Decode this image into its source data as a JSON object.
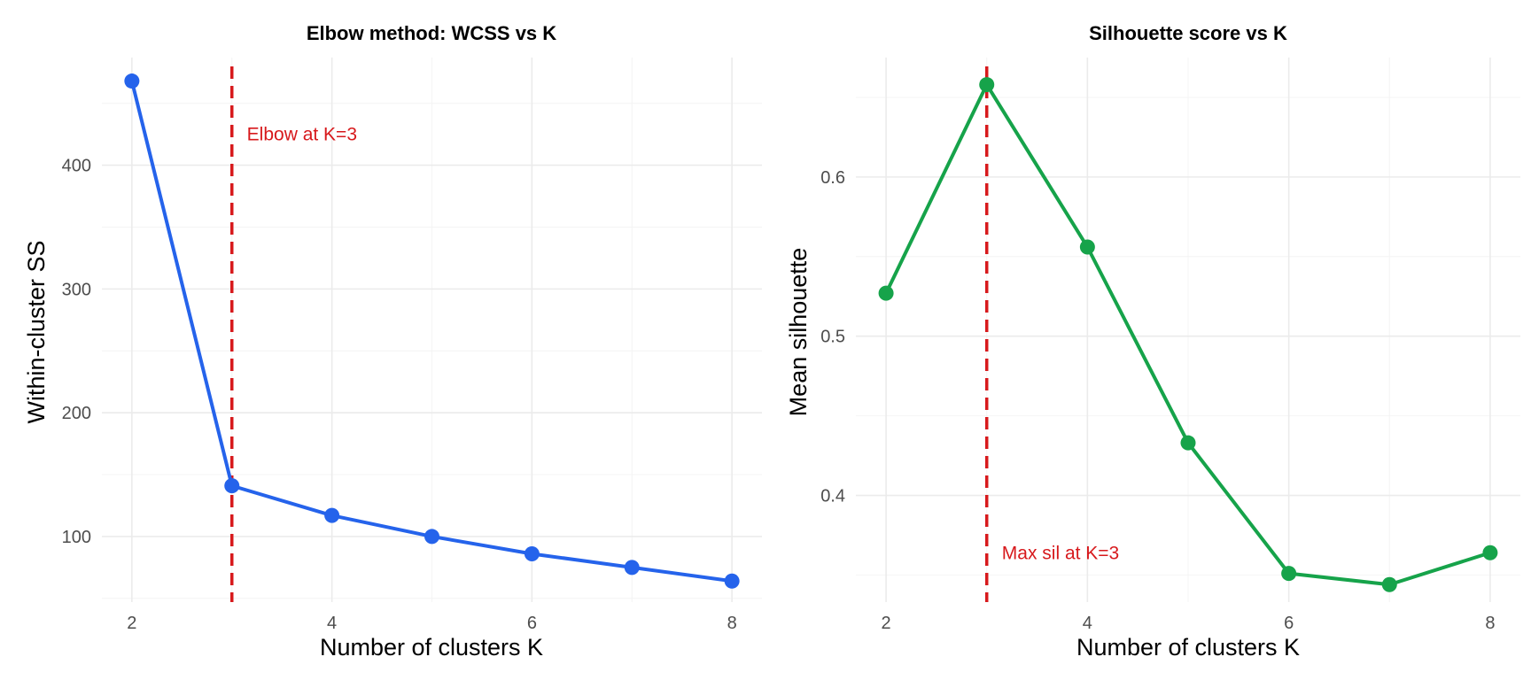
{
  "chart_data": [
    {
      "type": "line",
      "title": "Elbow method: WCSS vs K",
      "xlabel": "Number of clusters K",
      "ylabel": "Within-cluster SS",
      "xlim": [
        1.7,
        8.3
      ],
      "ylim": [
        47,
        487
      ],
      "x_ticks": [
        2,
        4,
        6,
        8
      ],
      "y_ticks": [
        100,
        200,
        300,
        400
      ],
      "grid": true,
      "series": [
        {
          "color": "#2563eb",
          "x": [
            2,
            3,
            4,
            5,
            6,
            7,
            8
          ],
          "y": [
            468,
            141,
            117,
            100,
            86,
            75,
            64
          ]
        }
      ],
      "reference_line": {
        "x": 3,
        "color": "#d7191c",
        "style": "dashed"
      },
      "annotation": {
        "text": "Elbow at K=3",
        "x": 3.15,
        "y": 420,
        "color": "#d7191c"
      }
    },
    {
      "type": "line",
      "title": "Silhouette score vs K",
      "xlabel": "Number of clusters K",
      "ylabel": "Mean silhouette",
      "xlim": [
        1.7,
        8.3
      ],
      "ylim": [
        0.333,
        0.675
      ],
      "x_ticks": [
        2,
        4,
        6,
        8
      ],
      "y_ticks": [
        0.4,
        0.5,
        0.6
      ],
      "grid": true,
      "series": [
        {
          "color": "#16a34a",
          "x": [
            2,
            3,
            4,
            5,
            6,
            7,
            8
          ],
          "y": [
            0.527,
            0.658,
            0.556,
            0.433,
            0.351,
            0.344,
            0.364
          ]
        }
      ],
      "reference_line": {
        "x": 3,
        "color": "#d7191c",
        "style": "dashed"
      },
      "annotation": {
        "text": "Max sil at K=3",
        "x": 3.15,
        "y": 0.36,
        "color": "#d7191c"
      }
    }
  ]
}
